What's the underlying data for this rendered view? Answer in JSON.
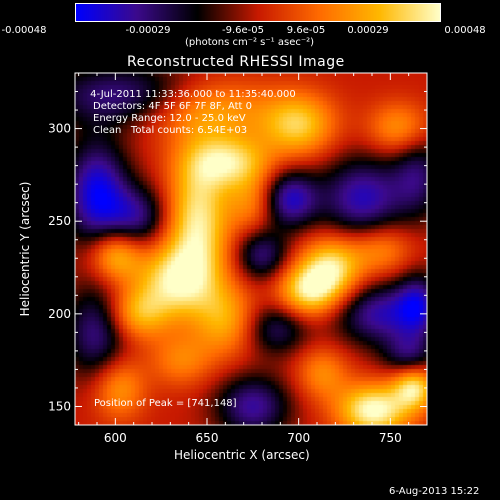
{
  "chart_data": {
    "type": "heatmap",
    "title": "Reconstructed RHESSI Image",
    "colorbar": {
      "range": [
        -0.00048,
        0.00048
      ],
      "tick_labels": [
        "-0.00048",
        "-0.00029",
        "-9.6e-05",
        "9.6e-05",
        "0.00029",
        "0.00048"
      ],
      "unit_label": "(photons cm⁻² s⁻¹ asec⁻²)",
      "colormap": [
        "#0000ff",
        "#3c0a8c",
        "#000000",
        "#c81a00",
        "#ff6a00",
        "#ffb800",
        "#ffffc8"
      ]
    },
    "annotations": [
      " 4-Jul-2011 11:33:36.000 to 11:35:40.000",
      "Detectors: 4F 5F 6F 7F 8F, Att 0",
      "Energy Range: 12.0 - 25.0 keV",
      "Clean   Total counts: 6.54E+03"
    ],
    "peak_label": "Position of Peak = [741,148]",
    "xlabel": "Heliocentric X (arcsec)",
    "ylabel": "Heliocentric Y (arcsec)",
    "xlim": [
      578,
      770
    ],
    "ylim": [
      140,
      330
    ],
    "xticks": [
      "600",
      "650",
      "700",
      "750"
    ],
    "yticks": [
      "150",
      "200",
      "250",
      "300"
    ],
    "blobs": [
      {
        "x": 650,
        "y": 310,
        "v": 0.0003,
        "sx": 25,
        "sy": 12
      },
      {
        "x": 700,
        "y": 302,
        "v": 0.00036,
        "sx": 14,
        "sy": 12
      },
      {
        "x": 755,
        "y": 300,
        "v": 0.00026,
        "sx": 12,
        "sy": 10
      },
      {
        "x": 605,
        "y": 318,
        "v": -0.00032,
        "sx": 30,
        "sy": 12
      },
      {
        "x": 590,
        "y": 265,
        "v": -0.00045,
        "sx": 12,
        "sy": 20
      },
      {
        "x": 612,
        "y": 252,
        "v": -0.0003,
        "sx": 12,
        "sy": 12
      },
      {
        "x": 645,
        "y": 250,
        "v": 0.00044,
        "sx": 12,
        "sy": 25
      },
      {
        "x": 662,
        "y": 282,
        "v": 0.00038,
        "sx": 16,
        "sy": 10
      },
      {
        "x": 675,
        "y": 260,
        "v": 0.00022,
        "sx": 10,
        "sy": 12
      },
      {
        "x": 695,
        "y": 262,
        "v": -0.0004,
        "sx": 11,
        "sy": 11
      },
      {
        "x": 735,
        "y": 262,
        "v": -0.00038,
        "sx": 16,
        "sy": 16
      },
      {
        "x": 765,
        "y": 275,
        "v": -0.00026,
        "sx": 10,
        "sy": 16
      },
      {
        "x": 718,
        "y": 225,
        "v": 0.00042,
        "sx": 12,
        "sy": 12
      },
      {
        "x": 705,
        "y": 212,
        "v": 0.0004,
        "sx": 12,
        "sy": 10
      },
      {
        "x": 745,
        "y": 235,
        "v": 0.00024,
        "sx": 12,
        "sy": 10
      },
      {
        "x": 680,
        "y": 232,
        "v": -0.0003,
        "sx": 10,
        "sy": 10
      },
      {
        "x": 632,
        "y": 218,
        "v": 0.0004,
        "sx": 15,
        "sy": 14
      },
      {
        "x": 612,
        "y": 200,
        "v": 0.0003,
        "sx": 12,
        "sy": 10
      },
      {
        "x": 600,
        "y": 232,
        "v": 0.00036,
        "sx": 10,
        "sy": 10
      },
      {
        "x": 590,
        "y": 190,
        "v": -0.00032,
        "sx": 12,
        "sy": 18
      },
      {
        "x": 660,
        "y": 197,
        "v": 0.00028,
        "sx": 12,
        "sy": 14
      },
      {
        "x": 688,
        "y": 192,
        "v": -0.00026,
        "sx": 12,
        "sy": 10
      },
      {
        "x": 745,
        "y": 200,
        "v": -0.00036,
        "sx": 18,
        "sy": 12
      },
      {
        "x": 765,
        "y": 205,
        "v": -0.0003,
        "sx": 8,
        "sy": 12
      },
      {
        "x": 636,
        "y": 175,
        "v": 0.0002,
        "sx": 12,
        "sy": 10
      },
      {
        "x": 602,
        "y": 160,
        "v": 0.00026,
        "sx": 10,
        "sy": 12
      },
      {
        "x": 675,
        "y": 150,
        "v": -0.00034,
        "sx": 14,
        "sy": 12
      },
      {
        "x": 713,
        "y": 168,
        "v": 0.00022,
        "sx": 10,
        "sy": 10
      },
      {
        "x": 741,
        "y": 148,
        "v": 0.0005,
        "sx": 14,
        "sy": 10
      },
      {
        "x": 763,
        "y": 160,
        "v": 0.0004,
        "sx": 8,
        "sy": 8
      },
      {
        "x": 760,
        "y": 178,
        "v": -0.00024,
        "sx": 10,
        "sy": 8
      }
    ]
  },
  "footer": {
    "date": "6-Aug-2013 15:22"
  }
}
